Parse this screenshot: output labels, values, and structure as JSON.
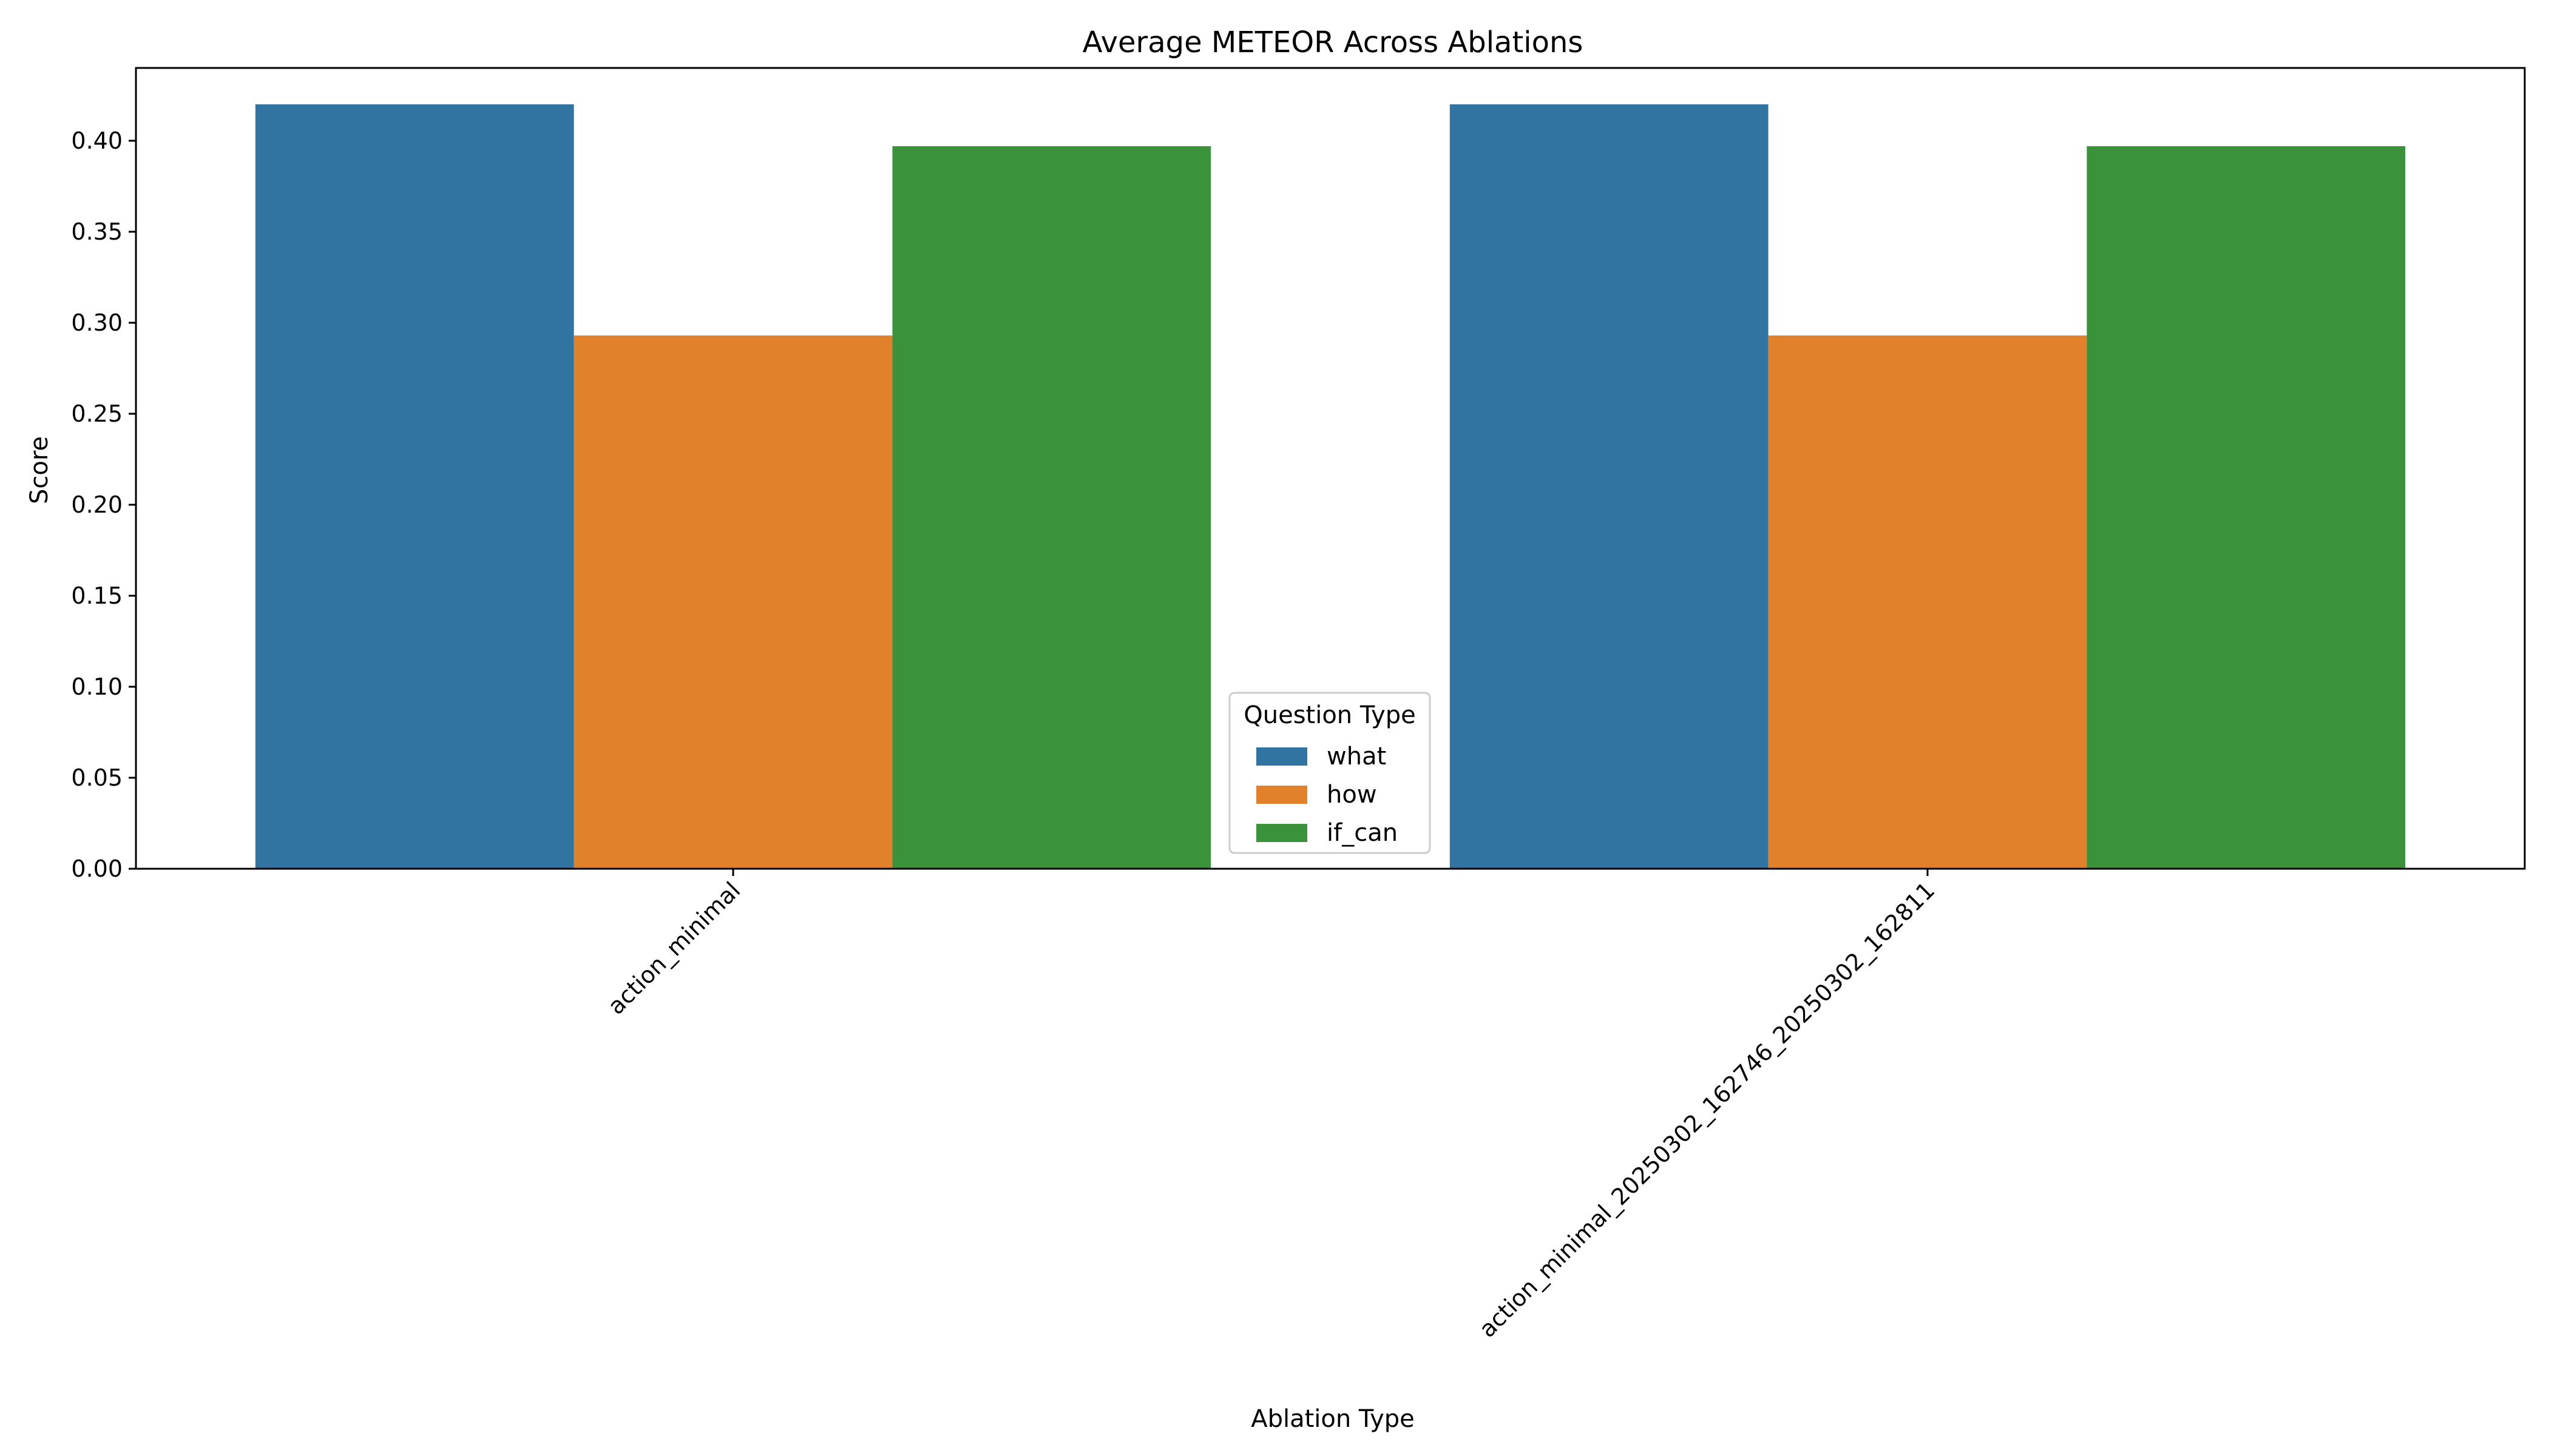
{
  "chart_data": {
    "type": "bar",
    "title": "Average METEOR Across Ablations",
    "xlabel": "Ablation Type",
    "ylabel": "Score",
    "categories": [
      "action_minimal",
      "action_minimal_20250302_162746_20250302_162811"
    ],
    "series": [
      {
        "name": "what",
        "values": [
          0.42,
          0.42
        ],
        "color": "#3274a1"
      },
      {
        "name": "how",
        "values": [
          0.293,
          0.293
        ],
        "color": "#e1812c"
      },
      {
        "name": "if_can",
        "values": [
          0.397,
          0.397
        ],
        "color": "#3a923a"
      }
    ],
    "ylim": [
      0,
      0.44
    ],
    "yticks": [
      "0.00",
      "0.05",
      "0.10",
      "0.15",
      "0.20",
      "0.25",
      "0.30",
      "0.35",
      "0.40"
    ],
    "legend": {
      "title": "Question Type",
      "placement": "bottom-center"
    },
    "grid": false
  }
}
